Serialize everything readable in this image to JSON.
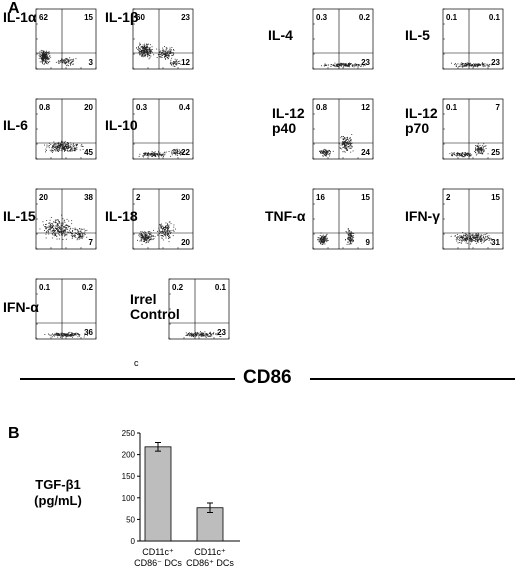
{
  "panel_a_letter": "A",
  "panel_b_letter": "B",
  "axis_title": "CD86",
  "stray_label": "c",
  "chart_data": [
    {
      "type": "scatter",
      "panel": "A",
      "description_type": "flow-cytometry quadrant dot plots",
      "plots": [
        {
          "label": [
            "IL-1α"
          ],
          "quadrants": {
            "upper_left": "62",
            "upper_right": "15",
            "lower_left": "",
            "lower_right": "3"
          }
        },
        {
          "label": [
            "IL-1β"
          ],
          "quadrants": {
            "upper_left": "60",
            "upper_right": "23",
            "lower_left": "",
            "lower_right": "12"
          }
        },
        {
          "label": [
            "IL-4"
          ],
          "quadrants": {
            "upper_left": "0.3",
            "upper_right": "0.2",
            "lower_left": "",
            "lower_right": "23"
          }
        },
        {
          "label": [
            "IL-5"
          ],
          "quadrants": {
            "upper_left": "0.1",
            "upper_right": "0.1",
            "lower_left": "",
            "lower_right": "23"
          }
        },
        {
          "label": [
            "IL-6"
          ],
          "quadrants": {
            "upper_left": "0.8",
            "upper_right": "20",
            "lower_left": "",
            "lower_right": "45"
          }
        },
        {
          "label": [
            "IL-10"
          ],
          "quadrants": {
            "upper_left": "0.3",
            "upper_right": "0.4",
            "lower_left": "",
            "lower_right": "22"
          }
        },
        {
          "label": [
            "IL-12",
            "p40"
          ],
          "quadrants": {
            "upper_left": "0.8",
            "upper_right": "12",
            "lower_left": "",
            "lower_right": "24"
          }
        },
        {
          "label": [
            "IL-12",
            "p70"
          ],
          "quadrants": {
            "upper_left": "0.1",
            "upper_right": "7",
            "lower_left": "",
            "lower_right": "25"
          }
        },
        {
          "label": [
            "IL-15"
          ],
          "quadrants": {
            "upper_left": "20",
            "upper_right": "38",
            "lower_left": "",
            "lower_right": "7"
          }
        },
        {
          "label": [
            "IL-18"
          ],
          "quadrants": {
            "upper_left": "2",
            "upper_right": "20",
            "lower_left": "",
            "lower_right": "20"
          }
        },
        {
          "label": [
            "TNF-α"
          ],
          "quadrants": {
            "upper_left": "16",
            "upper_right": "15",
            "lower_left": "",
            "lower_right": "9"
          }
        },
        {
          "label": [
            "IFN-γ"
          ],
          "quadrants": {
            "upper_left": "2",
            "upper_right": "15",
            "lower_left": "",
            "lower_right": "31"
          }
        },
        {
          "label": [
            "IFN-α"
          ],
          "quadrants": {
            "upper_left": "0.1",
            "upper_right": "0.2",
            "lower_left": "",
            "lower_right": "36"
          }
        },
        {
          "label": [
            "Irrel",
            "Control"
          ],
          "quadrants": {
            "upper_left": "0.2",
            "upper_right": "0.1",
            "lower_left": "",
            "lower_right": "23"
          }
        }
      ]
    },
    {
      "type": "bar",
      "panel": "B",
      "categories": [
        [
          "CD11c⁺",
          "CD86⁻ DCs"
        ],
        [
          "CD11c⁺",
          "CD86⁺ DCs"
        ]
      ],
      "values": [
        218,
        77
      ],
      "errors": [
        10,
        11
      ],
      "ylabel": [
        "TGF-β1",
        "(pg/mL)"
      ],
      "ylim": [
        0,
        250
      ],
      "yticks": [
        "0",
        "50",
        "100",
        "150",
        "200",
        "250"
      ],
      "bar_color": "#bdbdbd"
    }
  ]
}
